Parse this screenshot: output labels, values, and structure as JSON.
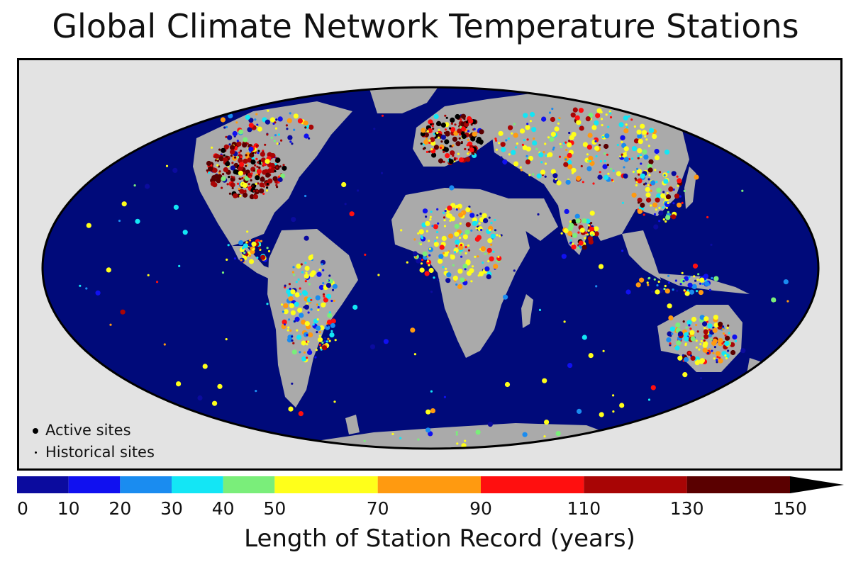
{
  "title": "Global Climate Network Temperature Stations",
  "colors": {
    "ocean": "#000a7a",
    "land": "#aaaaaa",
    "frame_bg": "#e3e3e3",
    "outline": "#000000"
  },
  "legend": {
    "active_label": "Active sites",
    "historical_label": "Historical sites"
  },
  "colorbar": {
    "label": "Length of Station Record (years)",
    "bins": [
      {
        "from": 0,
        "to": 10,
        "color": "#0b0b9e"
      },
      {
        "from": 10,
        "to": 20,
        "color": "#1010f0"
      },
      {
        "from": 20,
        "to": 30,
        "color": "#1a8cf0"
      },
      {
        "from": 30,
        "to": 40,
        "color": "#13e6f5"
      },
      {
        "from": 40,
        "to": 50,
        "color": "#7aee7a"
      },
      {
        "from": 50,
        "to": 70,
        "color": "#ffff1a"
      },
      {
        "from": 70,
        "to": 90,
        "color": "#ff9a10"
      },
      {
        "from": 90,
        "to": 110,
        "color": "#ff0f0f"
      },
      {
        "from": 110,
        "to": 130,
        "color": "#a80505"
      },
      {
        "from": 130,
        "to": 150,
        "color": "#5a0000"
      }
    ],
    "overflow_arrow_color": "#000000",
    "ticks": [
      "0",
      "10",
      "20",
      "30",
      "40",
      "50",
      "70",
      "90",
      "110",
      "130",
      "150"
    ]
  }
}
